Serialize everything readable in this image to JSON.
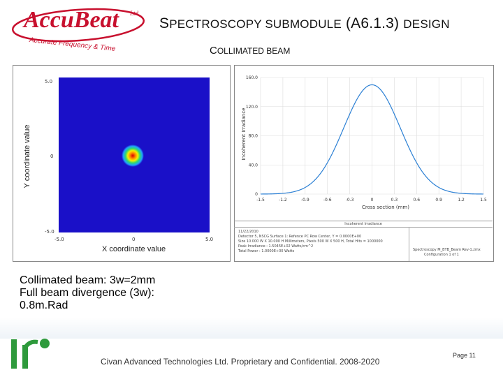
{
  "logo": {
    "word": "AccuBeat",
    "ltd": "Ltd.",
    "tagline": "Accurate Frequency & Time"
  },
  "title": {
    "prefix_main": "S",
    "rest_main": "PECTROSCOPY SUBMODULE",
    "code": "(A6.1.3)",
    "suffix": "DESIGN"
  },
  "subtitle": {
    "first": "C",
    "rest": "OLLIMATED BEAM"
  },
  "heatmap": {
    "xlabel": "X coordinate value",
    "ylabel": "Y coordinate value",
    "x_ticks": [
      "-5.0",
      "0",
      "5.0"
    ],
    "y_ticks": [
      "5.0",
      "0",
      "-5.0"
    ]
  },
  "chart_data": {
    "type": "line",
    "xlabel": "Cross section (mm)",
    "ylabel": "Incoherent Irradiance",
    "x_ticks": [
      "-1.5",
      "-1.2",
      "-0.9",
      "-0.6",
      "-0.3",
      "0",
      "0.3",
      "0.6",
      "0.9",
      "1.2",
      "1.5"
    ],
    "y_ticks": [
      "0",
      "40.0",
      "80.0",
      "120.0",
      "160.0"
    ],
    "xlim": [
      -1.5,
      1.5
    ],
    "ylim": [
      0,
      160
    ],
    "series": [
      {
        "peak": 150,
        "center": 0,
        "sigma": 0.38
      }
    ]
  },
  "info": {
    "header": "Incoherent Irradiance",
    "lines": [
      "11/22/2010",
      "Detector 5, NSCG Surface 1: Refence PC Row Center, Y = 0.0000E+00",
      "Size 10.000 W X 10.000 H Millimeters, Pixels 500 W X 500 H, Total Hits = 1000000",
      "Peak Irradiance : 1.5045E+02 Watts/cm^2",
      "Total Power : 1.0000E+00 Watts"
    ],
    "right_line1": "Spectroscopy M_BTB_Beam Rev-1.zmx",
    "right_line2": "Configuration 1 of 1"
  },
  "caption": {
    "line1": "Collimated beam: 3w=2mm",
    "line2": "Full beam divergence (3w):",
    "line3": "0.8m.Rad"
  },
  "footer": {
    "text": "Civan Advanced Technologies Ltd. Proprietary and Confidential. 2008-2020",
    "page": "Page 11"
  },
  "colors": {
    "brand_red": "#c8102e",
    "footer_green": "#2e9a3c",
    "heat_blue": "#1a10c8"
  }
}
